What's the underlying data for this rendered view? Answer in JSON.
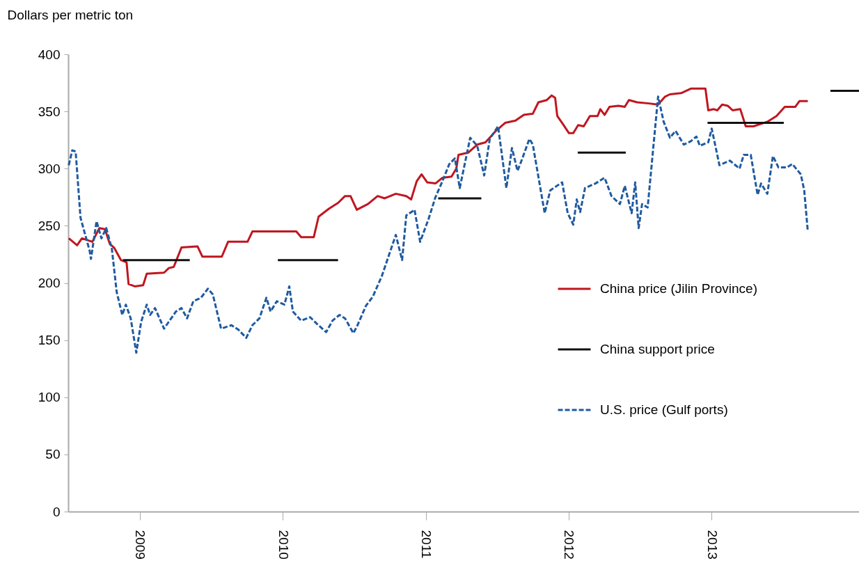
{
  "chart_data": {
    "type": "line",
    "ylabel": "Dollars per metric ton",
    "xlim": [
      2008.5,
      2014.03
    ],
    "xticks": [
      2009,
      2010,
      2011,
      2012,
      2013
    ],
    "ylim": [
      0,
      400
    ],
    "yticks": [
      0,
      50,
      100,
      150,
      200,
      250,
      300,
      350,
      400
    ],
    "legend": "right",
    "series": [
      {
        "name": "China price (Jilin Province)",
        "line_style": "solid",
        "color": "#c0161f",
        "x": [
          2008.504,
          2008.562,
          2008.596,
          2008.669,
          2008.718,
          2008.757,
          2008.791,
          2008.82,
          2008.869,
          2008.908,
          2008.922,
          2008.966,
          2009.024,
          2009.049,
          2009.17,
          2009.204,
          2009.238,
          2009.292,
          2009.404,
          2009.438,
          2009.574,
          2009.618,
          2009.754,
          2009.788,
          2010.095,
          2010.129,
          2010.217,
          2010.251,
          2010.324,
          2010.387,
          2010.436,
          2010.474,
          2010.518,
          2010.596,
          2010.664,
          2010.713,
          2010.791,
          2010.864,
          2010.898,
          2010.937,
          2010.971,
          2011.01,
          2011.068,
          2011.117,
          2011.18,
          2011.214,
          2011.229,
          2011.297,
          2011.36,
          2011.418,
          2011.491,
          2011.555,
          2011.628,
          2011.686,
          2011.749,
          2011.788,
          2011.847,
          2011.881,
          2011.905,
          2011.92,
          2011.959,
          2012.002,
          2012.032,
          2012.066,
          2012.105,
          2012.148,
          2012.202,
          2012.221,
          2012.251,
          2012.285,
          2012.348,
          2012.392,
          2012.421,
          2012.479,
          2012.562,
          2012.625,
          2012.674,
          2012.708,
          2012.786,
          2012.854,
          2012.956,
          2012.976,
          2013.015,
          2013.039,
          2013.073,
          2013.112,
          2013.146,
          2013.2,
          2013.238,
          2013.292,
          2013.389,
          2013.453,
          2013.511,
          2013.584,
          2013.613,
          2013.672
        ],
        "values": [
          239,
          233,
          239,
          236,
          248,
          247,
          234,
          231,
          220,
          218,
          199,
          197,
          198,
          208,
          209,
          213,
          214,
          231,
          232,
          223,
          223,
          236,
          236,
          245,
          245,
          240,
          240,
          258,
          265,
          270,
          276,
          276,
          264,
          269,
          276,
          274,
          278,
          276,
          273,
          289,
          295,
          288,
          287,
          292,
          293,
          300,
          312,
          314,
          321,
          323,
          333,
          340,
          342,
          347,
          348,
          358,
          360,
          364,
          362,
          346,
          339,
          331,
          331,
          338,
          337,
          346,
          346,
          352,
          347,
          354,
          355,
          354,
          360,
          358,
          357,
          356,
          363,
          365,
          366,
          370,
          370,
          351,
          352,
          351,
          356,
          355,
          351,
          352,
          337,
          337,
          341,
          346,
          354,
          354,
          359,
          359
        ]
      },
      {
        "name": "China support price",
        "line_style": "solid",
        "color": "#111111",
        "x": [
          2008.883,
          2009.35,
          2009.6,
          2009.966,
          2010.387,
          2010.7,
          2011.087,
          2011.389,
          2011.7,
          2012.063,
          2012.399,
          2012.7,
          2012.971,
          2013.504,
          2013.7,
          2013.83,
          2014.03
        ],
        "values": [
          220,
          220,
          null,
          220,
          220,
          null,
          274,
          274,
          null,
          314,
          314,
          null,
          340,
          340,
          null,
          368,
          368
        ]
      },
      {
        "name": "U.S. price (Gulf ports)",
        "line_style": "dashed",
        "color": "#1f5aa0",
        "x": [
          2008.504,
          2008.528,
          2008.552,
          2008.586,
          2008.65,
          2008.659,
          2008.698,
          2008.732,
          2008.766,
          2008.805,
          2008.839,
          2008.878,
          2008.903,
          2008.937,
          2008.976,
          2009.01,
          2009.049,
          2009.073,
          2009.107,
          2009.17,
          2009.253,
          2009.292,
          2009.331,
          2009.375,
          2009.428,
          2009.477,
          2009.511,
          2009.569,
          2009.642,
          2009.691,
          2009.745,
          2009.788,
          2009.837,
          2009.886,
          2009.915,
          2009.959,
          2010.012,
          2010.046,
          2010.071,
          2010.129,
          2010.192,
          2010.241,
          2010.304,
          2010.348,
          2010.397,
          2010.436,
          2010.494,
          2010.523,
          2010.582,
          2010.63,
          2010.693,
          2010.742,
          2010.791,
          2010.835,
          2010.864,
          2010.922,
          2010.961,
          2011.02,
          2011.068,
          2011.117,
          2011.165,
          2011.204,
          2011.238,
          2011.311,
          2011.36,
          2011.409,
          2011.448,
          2011.506,
          2011.564,
          2011.603,
          2011.642,
          2011.676,
          2011.725,
          2011.749,
          2011.832,
          2011.871,
          2011.954,
          2011.993,
          2012.032,
          2012.056,
          2012.08,
          2012.114,
          2012.187,
          2012.251,
          2012.299,
          2012.358,
          2012.392,
          2012.44,
          2012.465,
          2012.489,
          2012.513,
          2012.552,
          2012.625,
          2012.664,
          2012.708,
          2012.747,
          2012.805,
          2012.854,
          2012.893,
          2012.917,
          2012.976,
          2013.0,
          2013.054,
          2013.127,
          2013.195,
          2013.224,
          2013.273,
          2013.321,
          2013.345,
          2013.389,
          2013.428,
          2013.467,
          2013.526,
          2013.564,
          2013.623,
          2013.647,
          2013.672
        ],
        "values": [
          303,
          316,
          315,
          257,
          228,
          221,
          254,
          239,
          248,
          230,
          192,
          172,
          181,
          169,
          139,
          166,
          181,
          172,
          178,
          160,
          175,
          178,
          169,
          184,
          187,
          195,
          190,
          160,
          163,
          159,
          152,
          163,
          169,
          187,
          175,
          184,
          181,
          197,
          175,
          167,
          170,
          164,
          157,
          167,
          172,
          169,
          156,
          163,
          180,
          188,
          206,
          224,
          242,
          220,
          259,
          264,
          236,
          256,
          275,
          289,
          304,
          309,
          283,
          327,
          320,
          294,
          326,
          337,
          283,
          318,
          298,
          309,
          326,
          321,
          261,
          281,
          288,
          261,
          251,
          273,
          262,
          283,
          287,
          292,
          276,
          269,
          285,
          261,
          288,
          248,
          269,
          266,
          363,
          341,
          327,
          333,
          321,
          324,
          328,
          320,
          323,
          335,
          303,
          307,
          300,
          312,
          312,
          277,
          287,
          278,
          311,
          301,
          301,
          304,
          295,
          281,
          245
        ]
      }
    ]
  }
}
